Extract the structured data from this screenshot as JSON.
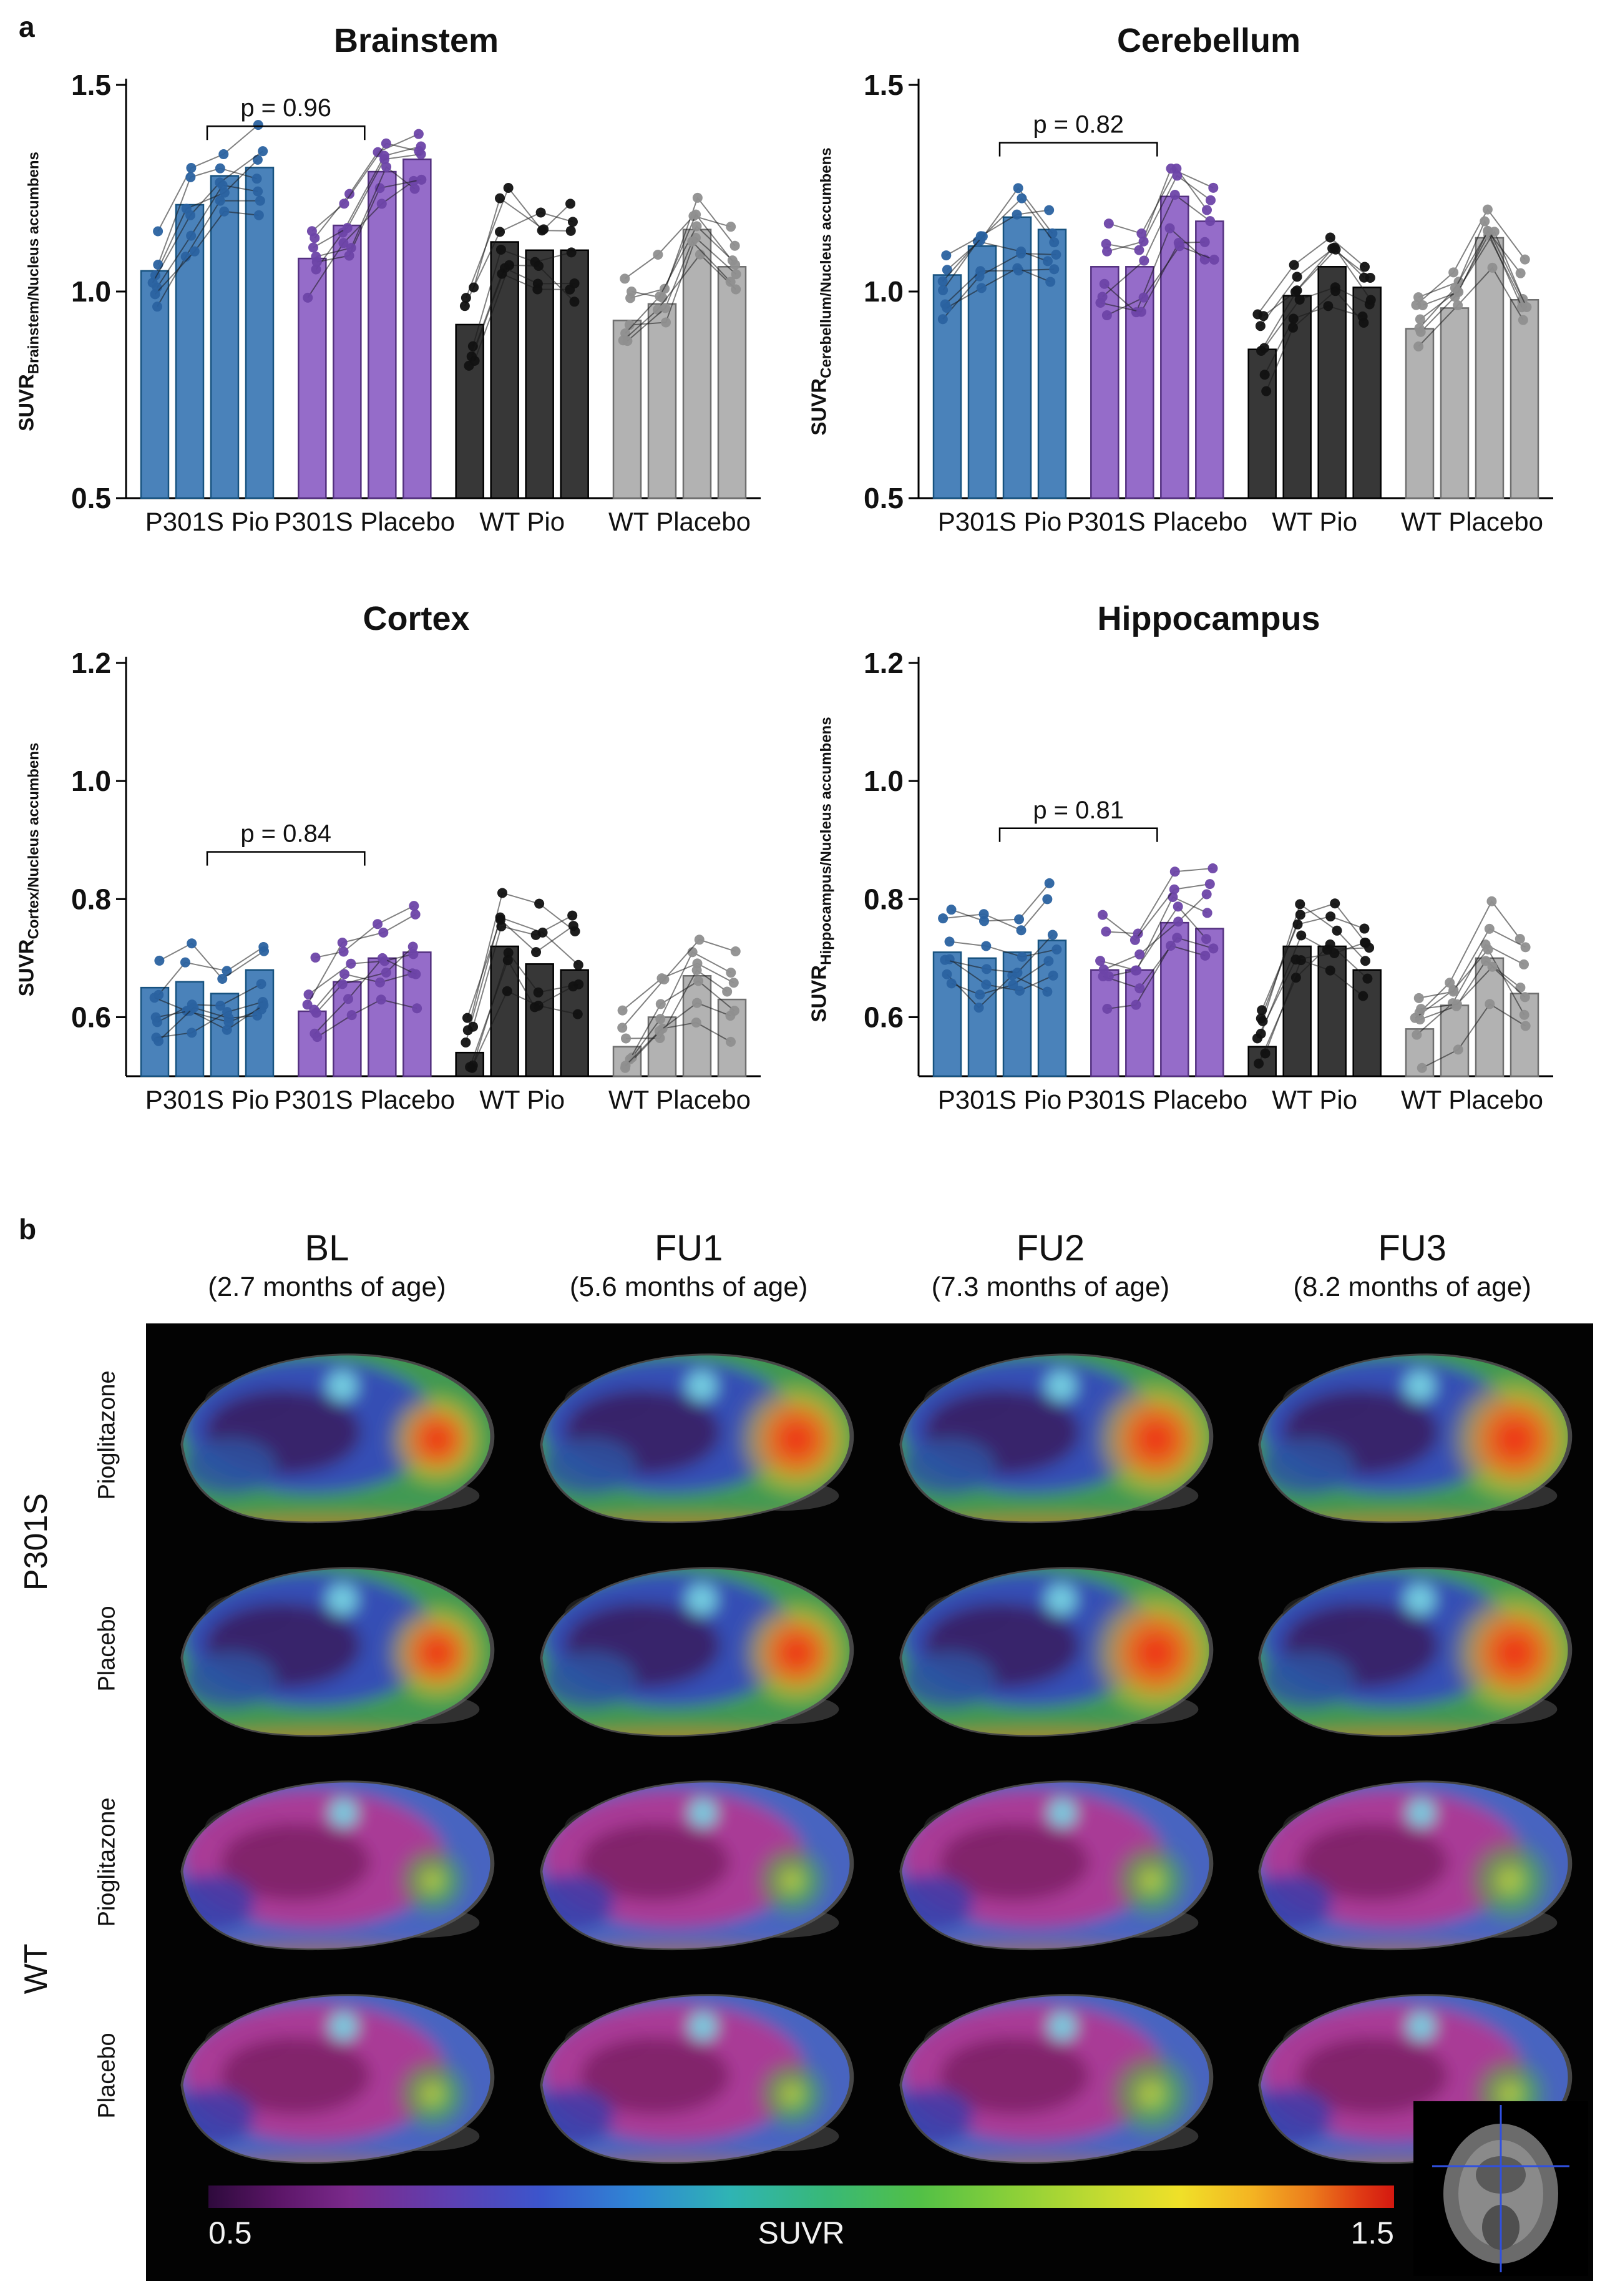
{
  "figure": {
    "panel_a_label": "a",
    "panel_b_label": "b"
  },
  "chart_data": [
    {
      "type": "bar",
      "title": "Brainstem",
      "ylabel_prefix": "SUVR",
      "ylabel_sub": "Brainstem/Nucleus accumbens",
      "ylim": [
        0.5,
        1.5
      ],
      "yticks": [
        "0.5",
        "1.0",
        "1.5"
      ],
      "p_label": "p = 0.96",
      "bracket_y": 1.4,
      "timepoints": [
        "BL",
        "FU1",
        "FU2",
        "FU3"
      ],
      "groups": [
        {
          "label": "P301S Pio",
          "fill": "#3b77b4",
          "edge": "#17527f",
          "dot": "#2a62a0",
          "values": [
            1.05,
            1.21,
            1.28,
            1.3
          ]
        },
        {
          "label": "P301S Placebo",
          "fill": "#8c5fc4",
          "edge": "#53307f",
          "dot": "#6d44a8",
          "values": [
            1.08,
            1.16,
            1.29,
            1.32
          ]
        },
        {
          "label": "WT Pio",
          "fill": "#262626",
          "edge": "#000000",
          "dot": "#111111",
          "values": [
            0.92,
            1.12,
            1.1,
            1.1
          ]
        },
        {
          "label": "WT Placebo",
          "fill": "#ababab",
          "edge": "#6f6f6f",
          "dot": "#8f8f8f",
          "values": [
            0.93,
            0.97,
            1.15,
            1.06
          ]
        }
      ]
    },
    {
      "type": "bar",
      "title": "Cerebellum",
      "ylabel_prefix": "SUVR",
      "ylabel_sub": "Cerebellum/Nucleus accumbens",
      "ylim": [
        0.5,
        1.5
      ],
      "yticks": [
        "0.5",
        "1.0",
        "1.5"
      ],
      "p_label": "p = 0.82",
      "bracket_y": 1.36,
      "timepoints": [
        "BL",
        "FU1",
        "FU2",
        "FU3"
      ],
      "groups": [
        {
          "label": "P301S Pio",
          "fill": "#3b77b4",
          "edge": "#17527f",
          "dot": "#2a62a0",
          "values": [
            1.04,
            1.11,
            1.18,
            1.15
          ]
        },
        {
          "label": "P301S Placebo",
          "fill": "#8c5fc4",
          "edge": "#53307f",
          "dot": "#6d44a8",
          "values": [
            1.06,
            1.06,
            1.23,
            1.17
          ]
        },
        {
          "label": "WT Pio",
          "fill": "#262626",
          "edge": "#000000",
          "dot": "#111111",
          "values": [
            0.86,
            0.99,
            1.06,
            1.01
          ]
        },
        {
          "label": "WT Placebo",
          "fill": "#ababab",
          "edge": "#6f6f6f",
          "dot": "#8f8f8f",
          "values": [
            0.91,
            0.96,
            1.13,
            0.98
          ]
        }
      ]
    },
    {
      "type": "bar",
      "title": "Cortex",
      "ylabel_prefix": "SUVR",
      "ylabel_sub": "Cortex/Nucleus accumbens",
      "ylim": [
        0.5,
        1.2
      ],
      "yticks": [
        "0.6",
        "0.8",
        "1.0",
        "1.2"
      ],
      "p_label": "p = 0.84",
      "bracket_y": 0.88,
      "timepoints": [
        "BL",
        "FU1",
        "FU2",
        "FU3"
      ],
      "groups": [
        {
          "label": "P301S Pio",
          "fill": "#3b77b4",
          "edge": "#17527f",
          "dot": "#2a62a0",
          "values": [
            0.65,
            0.66,
            0.64,
            0.68
          ]
        },
        {
          "label": "P301S Placebo",
          "fill": "#8c5fc4",
          "edge": "#53307f",
          "dot": "#6d44a8",
          "values": [
            0.61,
            0.66,
            0.7,
            0.71
          ]
        },
        {
          "label": "WT Pio",
          "fill": "#262626",
          "edge": "#000000",
          "dot": "#111111",
          "values": [
            0.54,
            0.72,
            0.69,
            0.68
          ]
        },
        {
          "label": "WT Placebo",
          "fill": "#ababab",
          "edge": "#6f6f6f",
          "dot": "#8f8f8f",
          "values": [
            0.55,
            0.6,
            0.67,
            0.63
          ]
        }
      ]
    },
    {
      "type": "bar",
      "title": "Hippocampus",
      "ylabel_prefix": "SUVR",
      "ylabel_sub": "Hippocampus/Nucleus accumbens",
      "ylim": [
        0.5,
        1.2
      ],
      "yticks": [
        "0.6",
        "0.8",
        "1.0",
        "1.2"
      ],
      "p_label": "p = 0.81",
      "bracket_y": 0.92,
      "timepoints": [
        "BL",
        "FU1",
        "FU2",
        "FU3"
      ],
      "groups": [
        {
          "label": "P301S Pio",
          "fill": "#3b77b4",
          "edge": "#17527f",
          "dot": "#2a62a0",
          "values": [
            0.71,
            0.7,
            0.71,
            0.73
          ]
        },
        {
          "label": "P301S Placebo",
          "fill": "#8c5fc4",
          "edge": "#53307f",
          "dot": "#6d44a8",
          "values": [
            0.68,
            0.68,
            0.76,
            0.75
          ]
        },
        {
          "label": "WT Pio",
          "fill": "#262626",
          "edge": "#000000",
          "dot": "#111111",
          "values": [
            0.55,
            0.72,
            0.72,
            0.68
          ]
        },
        {
          "label": "WT Placebo",
          "fill": "#ababab",
          "edge": "#6f6f6f",
          "dot": "#8f8f8f",
          "values": [
            0.58,
            0.62,
            0.7,
            0.64
          ]
        }
      ]
    }
  ],
  "panel_b": {
    "columns": [
      {
        "label": "BL",
        "sub": "(2.7 months of age)"
      },
      {
        "label": "FU1",
        "sub": "(5.6 months of age)"
      },
      {
        "label": "FU2",
        "sub": "(7.3 months of age)"
      },
      {
        "label": "FU3",
        "sub": "(8.2 months of age)"
      }
    ],
    "row_groups": [
      {
        "label": "P301S"
      },
      {
        "label": "WT"
      }
    ],
    "rows": [
      {
        "treatment": "Pioglitazone",
        "palette": "p301s",
        "hotspot_size": [
          0.55,
          0.85,
          0.9,
          1.0
        ]
      },
      {
        "treatment": "Placebo",
        "palette": "p301s",
        "hotspot_size": [
          0.6,
          0.7,
          1.0,
          0.95
        ]
      },
      {
        "treatment": "Pioglitazone",
        "palette": "wt",
        "hotspot_size": [
          0.45,
          0.5,
          0.55,
          0.7
        ]
      },
      {
        "treatment": "Placebo",
        "palette": "wt",
        "hotspot_size": [
          0.5,
          0.45,
          0.7,
          0.55
        ]
      }
    ],
    "colorbar": {
      "min": "0.5",
      "label": "SUVR",
      "max": "1.5"
    }
  }
}
